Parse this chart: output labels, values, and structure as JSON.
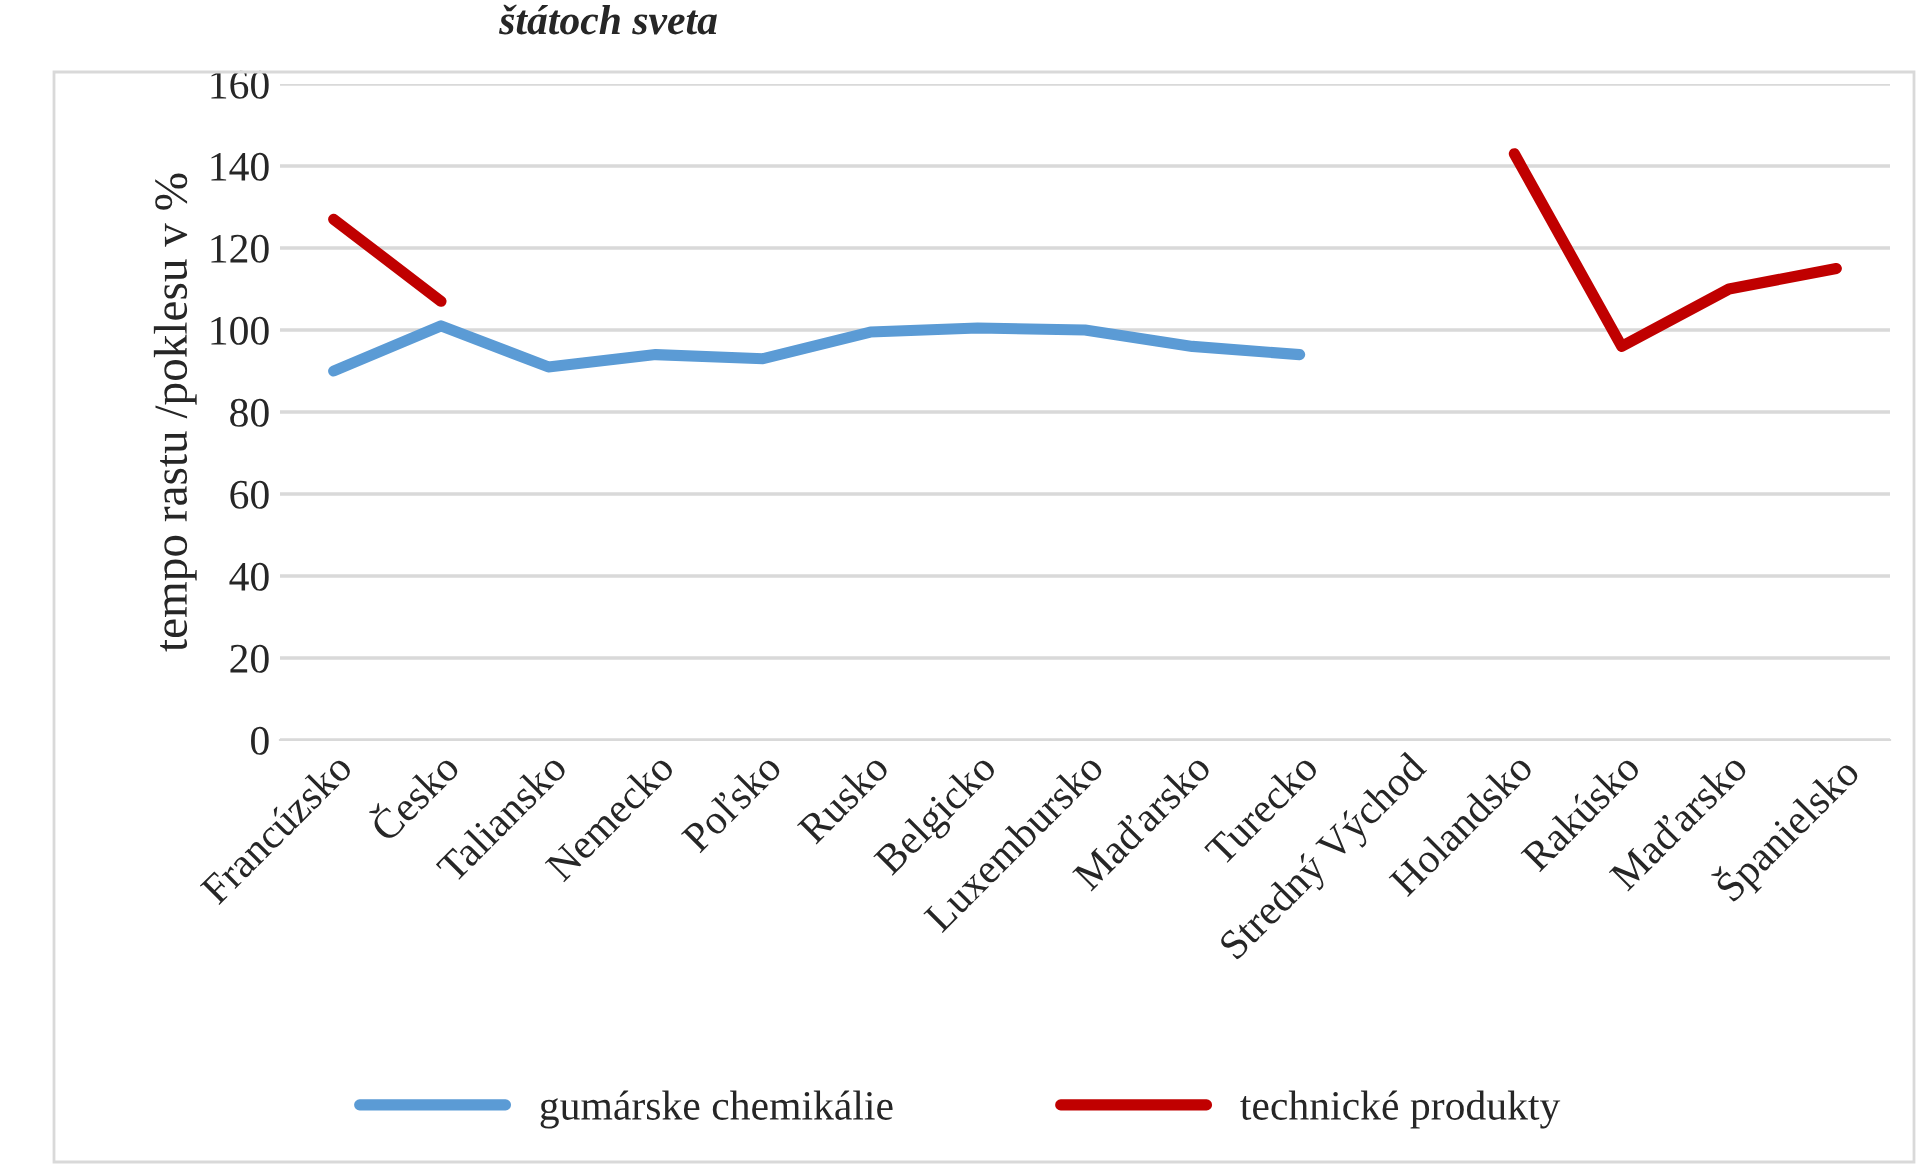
{
  "chart_data": {
    "type": "line",
    "title": "štátoch sveta",
    "ylabel": "tempo rastu /poklesu v %",
    "categories": [
      "Francúzsko",
      "Česko",
      "Taliansko",
      "Nemecko",
      "Poľsko",
      "Rusko",
      "Belgicko",
      "Luxembursko",
      "Maďarsko",
      "Turecko",
      "Stredný Východ",
      "Holandsko",
      "Rakúsko",
      "Maďarsko",
      "Španielsko"
    ],
    "series": [
      {
        "name": "gumárske chemikálie",
        "color": "#5b9bd5",
        "values": [
          90,
          101,
          91,
          94,
          93,
          99.5,
          100.5,
          100,
          96,
          94,
          null,
          null,
          null,
          null,
          null
        ]
      },
      {
        "name": "technické produkty",
        "color": "#c00000",
        "values": [
          127,
          107,
          null,
          null,
          null,
          null,
          null,
          null,
          null,
          null,
          null,
          143,
          96,
          110,
          115
        ]
      }
    ],
    "ylim": [
      0,
      160
    ],
    "yticks": [
      0,
      20,
      40,
      60,
      80,
      100,
      120,
      140,
      160
    ],
    "grid": "y",
    "legend": "bottom",
    "marker": "none",
    "line_style": "solid"
  }
}
